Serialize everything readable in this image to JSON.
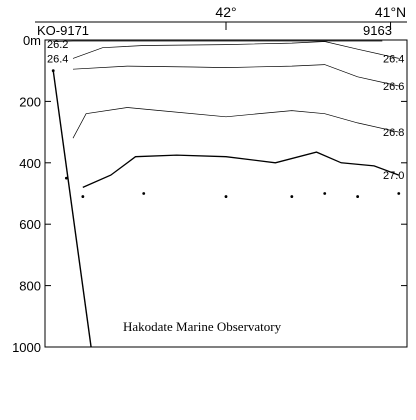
{
  "chart_data": {
    "type": "line",
    "title": "",
    "xlabel": "",
    "ylabel": "",
    "top_labels": [
      {
        "text": "42°",
        "lat": 42.0
      },
      {
        "text": "41°N",
        "lat": 41.0
      }
    ],
    "station_left_label": "KO-9171",
    "station_right_label": "9163",
    "depth_origin_label": "0m",
    "attribution": "Hakodate Marine Observatory",
    "xlim": [
      43.1,
      40.9
    ],
    "ylim": [
      1000,
      0
    ],
    "y_ticks": [
      {
        "value": 0,
        "label": "0m"
      },
      {
        "value": 200,
        "label": "200"
      },
      {
        "value": 400,
        "label": "400"
      },
      {
        "value": 600,
        "label": "600"
      },
      {
        "value": 800,
        "label": "800"
      },
      {
        "value": 1000,
        "label": "1000"
      }
    ],
    "top_ticks": [
      42.0,
      41.0
    ],
    "series": [
      {
        "name": "26.2",
        "x": [
          43.05,
          42.93,
          42.6,
          42.4,
          42.0,
          41.6,
          41.35,
          41.2,
          41.05
        ],
        "y": [
          5,
          2,
          -15,
          -10,
          -18,
          -12,
          -10,
          -12,
          -15
        ]
      },
      {
        "name": "26.4",
        "x": [
          42.93,
          42.75,
          42.5,
          42.0,
          41.6,
          41.4,
          41.2,
          40.95
        ],
        "y": [
          60,
          25,
          18,
          15,
          10,
          5,
          30,
          60
        ]
      },
      {
        "name": "26.6",
        "x": [
          42.93,
          42.6,
          42.2,
          42.0,
          41.6,
          41.4,
          41.2,
          40.95
        ],
        "y": [
          95,
          85,
          88,
          90,
          85,
          80,
          120,
          150
        ]
      },
      {
        "name": "26.8",
        "x": [
          42.93,
          42.85,
          42.6,
          42.4,
          42.0,
          41.6,
          41.4,
          41.2,
          40.95
        ],
        "y": [
          320,
          240,
          220,
          230,
          250,
          230,
          240,
          270,
          300
        ]
      },
      {
        "name": "27.0",
        "x": [
          42.87,
          42.7,
          42.55,
          42.3,
          42.0,
          41.7,
          41.45,
          41.3,
          41.1,
          40.95
        ],
        "y": [
          480,
          440,
          380,
          375,
          380,
          400,
          365,
          400,
          410,
          440
        ]
      }
    ],
    "stations": [
      {
        "lat": 43.05,
        "bottom_depth": 100
      },
      {
        "lat": 42.97,
        "bottom_depth": 450
      },
      {
        "lat": 42.87,
        "bottom_depth": 510
      },
      {
        "lat": 42.5,
        "bottom_depth": 500
      },
      {
        "lat": 42.0,
        "bottom_depth": 510
      },
      {
        "lat": 41.6,
        "bottom_depth": 510
      },
      {
        "lat": 41.4,
        "bottom_depth": 500
      },
      {
        "lat": 41.2,
        "bottom_depth": 510
      },
      {
        "lat": 40.95,
        "bottom_depth": 500
      }
    ],
    "bottom_profile": {
      "lat": [
        43.05,
        42.82
      ],
      "depth": [
        100,
        1000
      ]
    },
    "legend": "none",
    "grid": false,
    "colors": {
      "lines": "#000000",
      "background": "#ffffff"
    }
  }
}
